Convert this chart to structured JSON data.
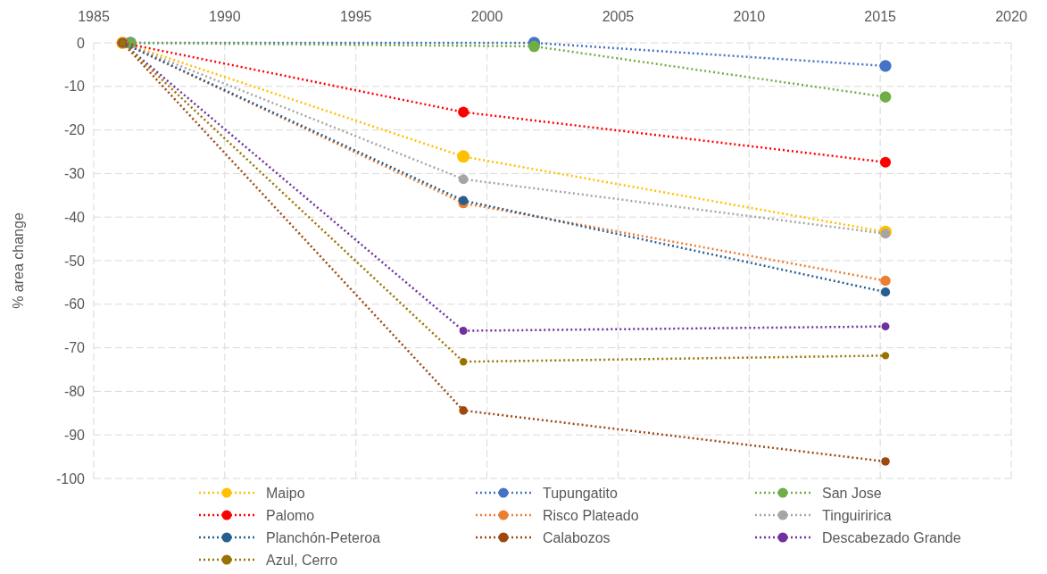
{
  "chart_data": {
    "type": "line",
    "ylabel": "% area change",
    "xlim": [
      1985,
      2020
    ],
    "xticks": [
      1985,
      1990,
      1995,
      2000,
      2005,
      2010,
      2015,
      2020
    ],
    "ylim": [
      -100,
      0
    ],
    "yticks": [
      -100,
      -90,
      -80,
      -70,
      -60,
      -50,
      -40,
      -30,
      -20,
      -10,
      0
    ],
    "grid": true,
    "legend": "bottom",
    "marker": "circle",
    "line_style": "dotted",
    "series": [
      {
        "name": "Maipo",
        "color": "#ffc000",
        "x": [
          1986.1,
          1999.1,
          2015.2
        ],
        "values": [
          0,
          -26.1,
          -43.4
        ]
      },
      {
        "name": "Tupungatito",
        "color": "#4472c4",
        "x": [
          1986.4,
          2001.8,
          2015.2
        ],
        "values": [
          0,
          0,
          -5.3
        ]
      },
      {
        "name": "San Jose",
        "color": "#70ad47",
        "x": [
          1986.4,
          2001.8,
          2015.2
        ],
        "values": [
          0,
          -0.8,
          -12.4
        ]
      },
      {
        "name": "Palomo",
        "color": "#ff0000",
        "x": [
          1986.1,
          1999.1,
          2015.2
        ],
        "values": [
          0,
          -15.9,
          -27.4
        ]
      },
      {
        "name": "Risco Plateado",
        "color": "#ed7d31",
        "x": [
          1986.1,
          1999.1,
          2015.2
        ],
        "values": [
          0,
          -36.8,
          -54.6
        ]
      },
      {
        "name": "Tinguiririca",
        "color": "#a5a5a5",
        "x": [
          1986.1,
          1999.1,
          2015.2
        ],
        "values": [
          0,
          -31.3,
          -43.8
        ]
      },
      {
        "name": "Planchón-Peteroa",
        "color": "#255e91",
        "x": [
          1986.1,
          1999.1,
          2015.2
        ],
        "values": [
          0,
          -36.2,
          -57.2
        ]
      },
      {
        "name": "Calabozos",
        "color": "#9e480e",
        "x": [
          1986.1,
          1999.1,
          2015.2
        ],
        "values": [
          0,
          -84.4,
          -96.1
        ]
      },
      {
        "name": "Descabezado Grande",
        "color": "#7030a0",
        "x": [
          1986.1,
          1999.1,
          2015.2
        ],
        "values": [
          0,
          -66.1,
          -65.1
        ]
      },
      {
        "name": "Azul, Cerro",
        "color": "#997300",
        "x": [
          1986.1,
          1999.1,
          2015.2
        ],
        "values": [
          0,
          -73.2,
          -71.8
        ]
      }
    ]
  }
}
